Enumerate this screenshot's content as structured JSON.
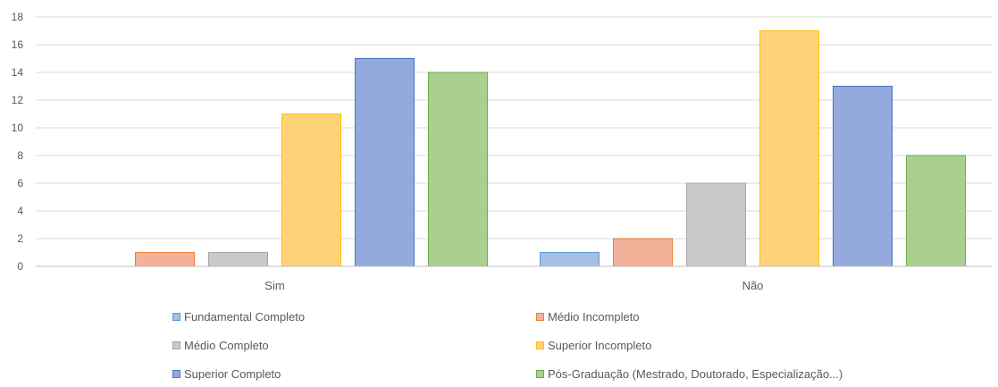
{
  "chart_data": {
    "type": "bar",
    "categories": [
      "Sim",
      "Não"
    ],
    "ylim": [
      0,
      18
    ],
    "yticks": [
      0,
      2,
      4,
      6,
      8,
      10,
      12,
      14,
      16,
      18
    ],
    "grid": true,
    "legend_position": "bottom",
    "series": [
      {
        "name": "Fundamental Completo",
        "values": [
          0,
          1
        ],
        "color": "#a6bfe4",
        "border": "#5b9bd5"
      },
      {
        "name": "Médio Incompleto",
        "values": [
          1,
          2
        ],
        "color": "#f4b19a",
        "border": "#ed7d31"
      },
      {
        "name": "Médio Completo",
        "values": [
          1,
          6
        ],
        "color": "#c9c9c9",
        "border": "#a5a5a5"
      },
      {
        "name": "Superior Incompleto",
        "values": [
          11,
          17
        ],
        "color": "#ffd27a",
        "border": "#ffc000"
      },
      {
        "name": "Superior Completo",
        "values": [
          15,
          13
        ],
        "color": "#95aadc",
        "border": "#4472c4"
      },
      {
        "name": "Pós-Graduação (Mestrado, Doutorado, Especialização...)",
        "values": [
          14,
          8
        ],
        "color": "#a9d08e",
        "border": "#70ad47"
      }
    ]
  }
}
